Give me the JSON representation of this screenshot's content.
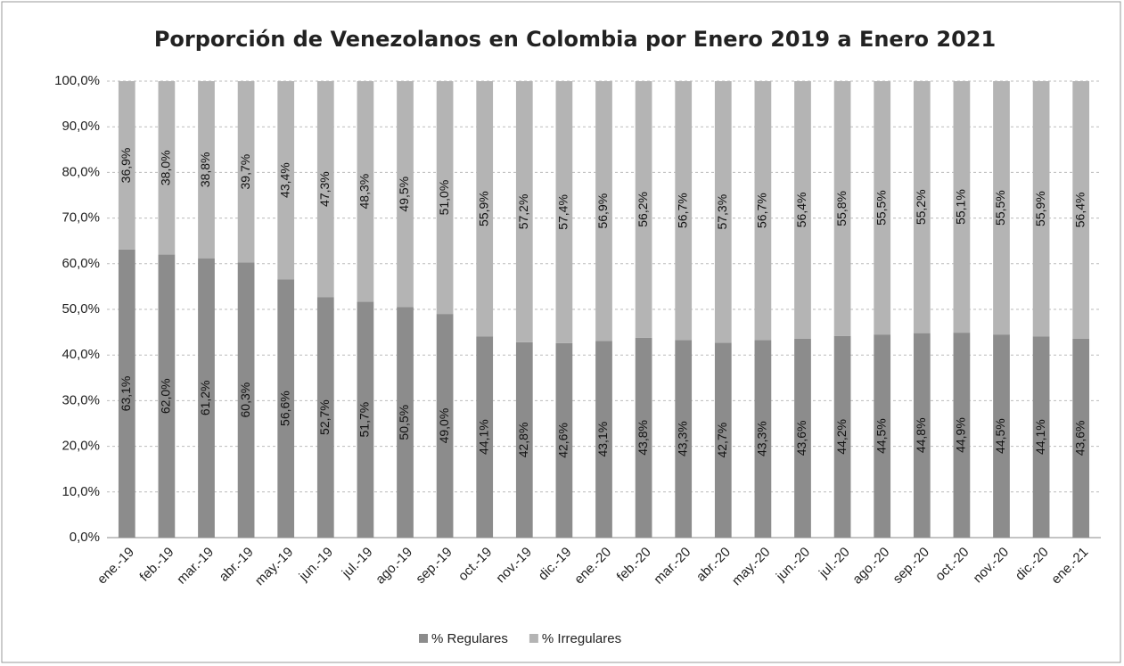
{
  "chart_data": {
    "type": "stacked_bar",
    "title": "Porporción de Venezolanos  en Colombia  por Enero 2019 a Enero 2021",
    "categories": [
      "ene.-19",
      "feb.-19",
      "mar.-19",
      "abr.-19",
      "may.-19",
      "jun.-19",
      "jul.-19",
      "ago.-19",
      "sep.-19",
      "oct.-19",
      "nov.-19",
      "dic.-19",
      "ene.-20",
      "feb.-20",
      "mar.-20",
      "abr.-20",
      "may.-20",
      "jun.-20",
      "jul.-20",
      "ago.-20",
      "sep.-20",
      "oct.-20",
      "nov.-20",
      "dic.-20",
      "ene.-21"
    ],
    "series": [
      {
        "name": "% Regulares",
        "color": "#8c8c8c",
        "values": [
          63.1,
          62.0,
          61.2,
          60.3,
          56.6,
          52.7,
          51.7,
          50.5,
          49.0,
          44.1,
          42.8,
          42.6,
          43.1,
          43.8,
          43.3,
          42.7,
          43.3,
          43.6,
          44.2,
          44.5,
          44.8,
          44.9,
          44.5,
          44.1,
          43.6
        ],
        "value_labels": [
          "63,1%",
          "62,0%",
          "61,2%",
          "60,3%",
          "56,6%",
          "52,7%",
          "51,7%",
          "50,5%",
          "49,0%",
          "44,1%",
          "42,8%",
          "42,6%",
          "43,1%",
          "43,8%",
          "43,3%",
          "42,7%",
          "43,3%",
          "43,6%",
          "44,2%",
          "44,5%",
          "44,8%",
          "44,9%",
          "44,5%",
          "44,1%",
          "43,6%"
        ]
      },
      {
        "name": "% Irregulares",
        "color": "#b4b4b4",
        "values": [
          36.9,
          38.0,
          38.8,
          39.7,
          43.4,
          47.3,
          48.3,
          49.5,
          51.0,
          55.9,
          57.2,
          57.4,
          56.9,
          56.2,
          56.7,
          57.3,
          56.7,
          56.4,
          55.8,
          55.5,
          55.2,
          55.1,
          55.5,
          55.9,
          56.4
        ],
        "value_labels": [
          "36,9%",
          "38,0%",
          "38,8%",
          "39,7%",
          "43,4%",
          "47,3%",
          "48,3%",
          "49,5%",
          "51,0%",
          "55,9%",
          "57,2%",
          "57,4%",
          "56,9%",
          "56,2%",
          "56,7%",
          "57,3%",
          "56,7%",
          "56,4%",
          "55,8%",
          "55,5%",
          "55,2%",
          "55,1%",
          "55,5%",
          "55,9%",
          "56,4%"
        ]
      }
    ],
    "ylim": [
      0,
      100
    ],
    "yticks": [
      {
        "value": 0,
        "label": "0,0%"
      },
      {
        "value": 10,
        "label": "10,0%"
      },
      {
        "value": 20,
        "label": "20,0%"
      },
      {
        "value": 30,
        "label": "30,0%"
      },
      {
        "value": 40,
        "label": "40,0%"
      },
      {
        "value": 50,
        "label": "50,0%"
      },
      {
        "value": 60,
        "label": "60,0%"
      },
      {
        "value": 70,
        "label": "70,0%"
      },
      {
        "value": 80,
        "label": "80,0%"
      },
      {
        "value": 90,
        "label": "90,0%"
      },
      {
        "value": 100,
        "label": "100,0%"
      }
    ],
    "grid": true,
    "legend": "bottom"
  }
}
